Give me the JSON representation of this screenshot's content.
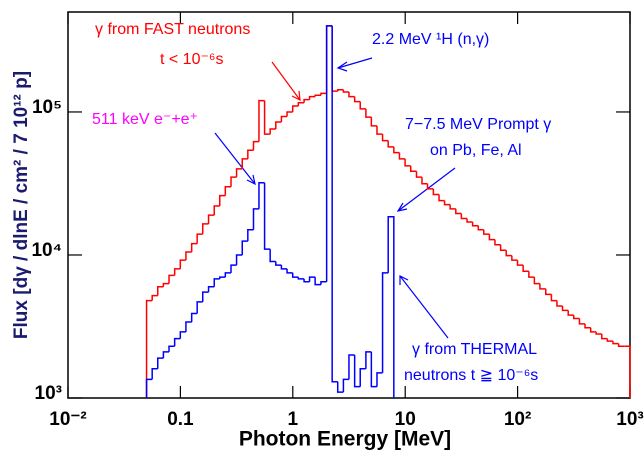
{
  "chart_data": {
    "type": "histogram",
    "xlabel": "Photon Energy [MeV]",
    "ylabel": "Flux [dγ / dlnE / cm² / 7 10¹² p]",
    "xscale": "log",
    "yscale": "log",
    "xlim": [
      0.01,
      1000
    ],
    "ylim": [
      1000,
      500000
    ],
    "xticks": [
      {
        "value": 0.01,
        "label": "10⁻²"
      },
      0.1,
      1,
      10,
      {
        "value": 100,
        "label": "10²"
      },
      {
        "value": 1000,
        "label": "10³"
      }
    ],
    "yticks": [
      {
        "value": 1000,
        "label": "10³"
      },
      {
        "value": 10000,
        "label": "10⁴"
      },
      {
        "value": 100000,
        "label": "10⁵"
      }
    ],
    "bins": [
      0.05,
      0.0561,
      0.0629,
      0.0706,
      0.0792,
      0.0889,
      0.0998,
      0.112,
      0.126,
      0.141,
      0.158,
      0.178,
      0.2,
      0.224,
      0.251,
      0.282,
      0.316,
      0.355,
      0.398,
      0.447,
      0.5,
      0.561,
      0.629,
      0.706,
      0.792,
      0.889,
      0.998,
      1.12,
      1.26,
      1.41,
      1.58,
      1.78,
      2,
      2.24,
      2.51,
      2.82,
      3.16,
      3.55,
      3.98,
      4.47,
      5,
      5.61,
      6.29,
      7.06,
      7.92,
      8.89,
      9.98,
      11.2,
      12.6,
      14.1,
      15.8,
      17.8,
      20,
      22.4,
      25.1,
      28.2,
      31.6,
      35.5,
      39.8,
      44.7,
      50,
      56.1,
      62.9,
      70.6,
      79.2,
      88.9,
      99.8,
      112,
      126,
      141,
      158,
      178,
      200,
      224,
      251,
      282,
      316,
      355,
      398,
      447,
      500,
      561,
      629,
      706,
      792,
      889,
      998
    ],
    "series": [
      {
        "color": "#ff0000",
        "values": [
          4800,
          5200,
          6000,
          6300,
          7200,
          8000,
          9200,
          10500,
          12000,
          14000,
          16500,
          19000,
          22000,
          26000,
          30000,
          35000,
          40000,
          47000,
          54000,
          62000,
          120000,
          70000,
          76000,
          85000,
          93000,
          100000,
          110000,
          116000,
          122000,
          128000,
          131000,
          135000,
          400000,
          140000,
          143000,
          138000,
          128000,
          118000,
          105000,
          92000,
          80000,
          70000,
          63000,
          57000,
          52000,
          47000,
          42000,
          38500,
          35000,
          31500,
          29000,
          26500,
          24000,
          22500,
          21000,
          19500,
          18000,
          17000,
          16000,
          15000,
          14000,
          12800,
          11800,
          10800,
          9900,
          9200,
          8500,
          7700,
          7000,
          6300,
          5800,
          5300,
          4800,
          4400,
          4100,
          3800,
          3600,
          3300,
          3100,
          2900,
          2800,
          2600,
          2500,
          2400,
          2300,
          2300
        ]
      },
      {
        "color": "#0000ff",
        "values": [
          1350,
          1600,
          1900,
          2100,
          2300,
          2600,
          2900,
          3400,
          3900,
          4700,
          5500,
          6000,
          6800,
          7000,
          7500,
          8500,
          10000,
          12500,
          15000,
          21000,
          32000,
          11000,
          9000,
          8500,
          8000,
          7500,
          7000,
          6800,
          6500,
          7000,
          6200,
          6500,
          400000,
          1300,
          1100,
          1350,
          2000,
          1200,
          1600,
          2100,
          1200,
          1500,
          7500,
          18500,
          null,
          null,
          null,
          null,
          null,
          null,
          null,
          null,
          null,
          null,
          null,
          null,
          null,
          null,
          null,
          null,
          null,
          null,
          null,
          null,
          null,
          null,
          null,
          null,
          null,
          null,
          null,
          null,
          null,
          null,
          null,
          null,
          null,
          null,
          null,
          null,
          null,
          null,
          null,
          null,
          null,
          null
        ]
      }
    ],
    "annotations": [
      {
        "text": "γ from FAST neutrons",
        "color": "#ff0000"
      },
      {
        "text": "t < 10⁻⁶s",
        "color": "#ff0000"
      },
      {
        "text": "2.2 MeV ¹H (n,γ)",
        "color": "#0000ff"
      },
      {
        "text": "511 keV e⁻+e⁺",
        "color": "#ff00ff"
      },
      {
        "text": "7−7.5 MeV Prompt γ",
        "color": "#0000ff"
      },
      {
        "text": "on Pb, Fe, Al",
        "color": "#0000ff"
      },
      {
        "text": "γ from THERMAL",
        "color": "#0000ff"
      },
      {
        "text": "neutrons t ≧ 10⁻⁶s",
        "color": "#0000ff"
      }
    ]
  }
}
